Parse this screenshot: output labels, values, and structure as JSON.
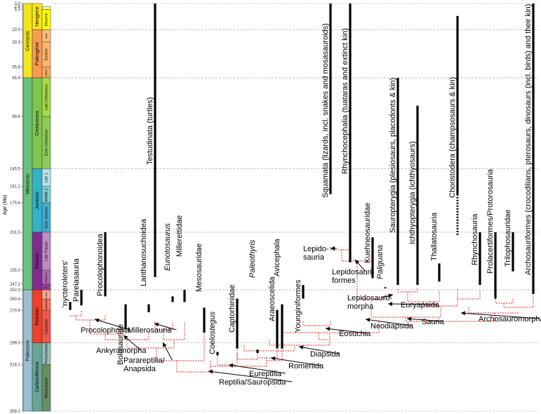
{
  "chart_data": {
    "type": "phylogenetic-tree",
    "y_axis": {
      "label": "Age (Ma)",
      "range": [
        0,
        359.2
      ],
      "ticks": [
        {
          "value": 0.0,
          "label": "0.0"
        },
        {
          "value": 2.6,
          "label": "2.6"
        },
        {
          "value": 5.3,
          "label": "5.3"
        },
        {
          "value": 23.0,
          "label": "23.0"
        },
        {
          "value": 33.9,
          "label": "33.9"
        },
        {
          "value": 55.8,
          "label": "55.8"
        },
        {
          "value": 65.5,
          "label": "65.5"
        },
        {
          "value": 99.6,
          "label": "99.6"
        },
        {
          "value": 145.5,
          "label": "145.5"
        },
        {
          "value": 161.2,
          "label": "161.2"
        },
        {
          "value": 175.6,
          "label": "175.6"
        },
        {
          "value": 201.5,
          "label": "201.5"
        },
        {
          "value": 235.0,
          "label": "235.0"
        },
        {
          "value": 247.2,
          "label": "247.2"
        },
        {
          "value": 252.3,
          "label": "252.3"
        },
        {
          "value": 260.4,
          "label": "260.4"
        },
        {
          "value": 270.6,
          "label": "270.6"
        },
        {
          "value": 299.0,
          "label": "299.0"
        },
        {
          "value": 318.1,
          "label": "318.1"
        },
        {
          "value": 359.2,
          "label": "359.2"
        }
      ],
      "dashed_gridlines_at": [
        23.0,
        65.5,
        145.5,
        201.5,
        252.3,
        299.0,
        359.2
      ]
    },
    "timescale": {
      "eras": [
        {
          "name": "Cenozoic",
          "start": 65.5,
          "end": 0,
          "color": "#f2e51c"
        },
        {
          "name": "Mesozoic",
          "start": 252.3,
          "end": 65.5,
          "color": "#67c37c"
        },
        {
          "name": "Paleozoic",
          "start": 359.2,
          "end": 252.3,
          "color": "#99c0d1"
        }
      ],
      "periods": [
        {
          "name": "Neogene",
          "start": 23.0,
          "end": 0,
          "color": "#ffe619"
        },
        {
          "name": "Paleogene",
          "start": 65.5,
          "end": 23.0,
          "color": "#fd9a52"
        },
        {
          "name": "Cretaceous",
          "start": 145.5,
          "end": 65.5,
          "color": "#7fc64e"
        },
        {
          "name": "Jurassic",
          "start": 201.5,
          "end": 145.5,
          "color": "#34b2c9"
        },
        {
          "name": "Triassic",
          "start": 252.3,
          "end": 201.5,
          "color": "#812b92"
        },
        {
          "name": "Permian",
          "start": 299.0,
          "end": 252.3,
          "color": "#f04028"
        },
        {
          "name": "Carboniferous",
          "start": 359.2,
          "end": 299.0,
          "color": "#67a599"
        }
      ],
      "epochs": [
        {
          "name": "Plio",
          "start": 5.3,
          "end": 2.6,
          "color": "#ffff99"
        },
        {
          "name": "Miocene",
          "start": 23.0,
          "end": 5.3,
          "color": "#ffff00"
        },
        {
          "name": "Oligo.",
          "start": 33.9,
          "end": 23.0,
          "color": "#fdc07a"
        },
        {
          "name": "Eocene",
          "start": 55.8,
          "end": 33.9,
          "color": "#fdb46c"
        },
        {
          "name": "Paleoc.",
          "start": 65.5,
          "end": 55.8,
          "color": "#fda75f"
        },
        {
          "name": "Late Cretaceous",
          "start": 99.6,
          "end": 65.5,
          "color": "#a6d84a"
        },
        {
          "name": "Early Cretaceous",
          "start": 145.5,
          "end": 99.6,
          "color": "#8ccd57"
        },
        {
          "name": "Late J.",
          "start": 161.2,
          "end": 145.5,
          "color": "#b3e3ee"
        },
        {
          "name": "Middle J.",
          "start": 175.6,
          "end": 161.2,
          "color": "#80cfd8"
        },
        {
          "name": "Early Jurassic",
          "start": 201.5,
          "end": 175.6,
          "color": "#42aed0"
        },
        {
          "name": "Late Triassic",
          "start": 235.0,
          "end": 201.5,
          "color": "#bd8cc3"
        },
        {
          "name": "Middle Tr.",
          "start": 247.2,
          "end": 235.0,
          "color": "#b168b1"
        },
        {
          "name": "E.",
          "start": 252.3,
          "end": 247.2,
          "color": "#983999"
        },
        {
          "name": "Lopin.",
          "start": 260.4,
          "end": 252.3,
          "color": "#fba794"
        },
        {
          "name": "Guadalupian",
          "start": 270.6,
          "end": 260.4,
          "color": "#fb745c"
        },
        {
          "name": "Cisuralian",
          "start": 299.0,
          "end": 270.6,
          "color": "#ef5845"
        },
        {
          "name": "Pennsylvanian",
          "start": 318.1,
          "end": 299.0,
          "color": "#99c2b5"
        },
        {
          "name": "Mississippian",
          "start": 359.2,
          "end": 318.1,
          "color": "#678f66"
        }
      ]
    },
    "taxa": [
      {
        "name": "'nycteroleters'",
        "first": 270.0,
        "last": 263.0,
        "italic": false
      },
      {
        "name": "Pareiasauria",
        "first": 266.0,
        "last": 252.3,
        "italic": false
      },
      {
        "name": "Procolophonoidea",
        "first": 258.0,
        "last": 201.5,
        "italic": false
      },
      {
        "name": "Bolosauride",
        "first": 287.0,
        "last": 265.0,
        "italic": false
      },
      {
        "name": "Lanthanosuchoidea",
        "first": 272.0,
        "last": 265.0,
        "italic": false
      },
      {
        "name": "Testudinata (turtles)",
        "first": 241.0,
        "last": 0.0,
        "italic": false
      },
      {
        "name": "Eunotosaurus",
        "first": 263.0,
        "last": 258.0,
        "italic": true
      },
      {
        "name": "Millerettidae",
        "first": 263.0,
        "last": 252.3,
        "italic": false
      },
      {
        "name": "Mesosauridae",
        "first": 290.0,
        "last": 268.0,
        "italic": false
      },
      {
        "name": "Coelostegus",
        "first": 310.0,
        "last": 307.0,
        "italic": true
      },
      {
        "name": "Captorhinidae",
        "first": 304.0,
        "last": 260.0,
        "italic": false
      },
      {
        "name": "Paleothyris",
        "first": 308.0,
        "last": 305.0,
        "italic": true
      },
      {
        "name": "Araeoscelida",
        "first": 304.0,
        "last": 270.0,
        "italic": false
      },
      {
        "name": "Avicephala",
        "first": 304.0,
        "last": 265.0,
        "italic": false
      },
      {
        "name": "Younginiformes",
        "first": 260.0,
        "last": 248.0,
        "italic": false
      },
      {
        "name": "Squamata (lizards, incl. snakes and mosasauroids)",
        "first": 168.0,
        "last": 0.0,
        "italic": false
      },
      {
        "name": "Rhynchocephalia (tuataras and extinct kin)",
        "first": 228.0,
        "last": 0.0,
        "italic": false
      },
      {
        "name": "Kuehneosauridae",
        "first": 242.0,
        "last": 206.0,
        "italic": false
      },
      {
        "name": "Paliguana",
        "first": 251.0,
        "last": 250.0,
        "italic": true
      },
      {
        "name": "Sauropterygia (plesiosaurs, placodonts & kin)",
        "first": 248.0,
        "last": 65.5,
        "italic": false
      },
      {
        "name": "Ichthyopterygia (ichthyosaurs)",
        "first": 248.0,
        "last": 90.0,
        "italic": false
      },
      {
        "name": "Thallatosauria",
        "first": 245.0,
        "last": 229.0,
        "italic": false
      },
      {
        "name": "Choristodera (champsosaurs & kin)",
        "first": 168.0,
        "last": 11.0,
        "italic": false,
        "ghost_range": [
          204.0,
          168.0
        ]
      },
      {
        "name": "Rhynchosauria",
        "first": 248.0,
        "last": 201.5,
        "italic": false
      },
      {
        "name": "Prolacertiformes/Protorosauria",
        "first": 260.0,
        "last": 201.5,
        "italic": false
      },
      {
        "name": "Trilophosauridae",
        "first": 236.0,
        "last": 201.5,
        "italic": false
      },
      {
        "name": "Archosauriformes (crocodilians, pterosaurs, dinosaurs (incl. birds) and their kin)",
        "first": 256.0,
        "last": 0.0,
        "italic": false
      }
    ],
    "clades": [
      {
        "name": "Procolophonia"
      },
      {
        "name": "Ankyramorpha"
      },
      {
        "name": "Millerosauria"
      },
      {
        "name": "Parareptilia/ Anapsida",
        "lines": [
          "Parareptilia/",
          "Anapsida"
        ]
      },
      {
        "name": "Reptilia/Sauropsida"
      },
      {
        "name": "Eureptilia"
      },
      {
        "name": "Romeriida"
      },
      {
        "name": "Diapsida"
      },
      {
        "name": "Eosuchia"
      },
      {
        "name": "Neodiapsida"
      },
      {
        "name": "Sauria"
      },
      {
        "name": "Archosauromorpha"
      },
      {
        "name": "Euryapsida"
      },
      {
        "name": "Lepidosauromorpha",
        "lines": [
          "Lepidosauro-",
          "morpha"
        ]
      },
      {
        "name": "Lepidosauriformes",
        "lines": [
          "Lepidosauri-",
          "formes"
        ]
      },
      {
        "name": "Lepidosauria",
        "lines": [
          "Lepido-",
          "sauria"
        ]
      }
    ],
    "colors": {
      "range_bar": "#000000",
      "ghost_lineage": "#e0201c",
      "gridline": "#9a9a9a"
    }
  }
}
